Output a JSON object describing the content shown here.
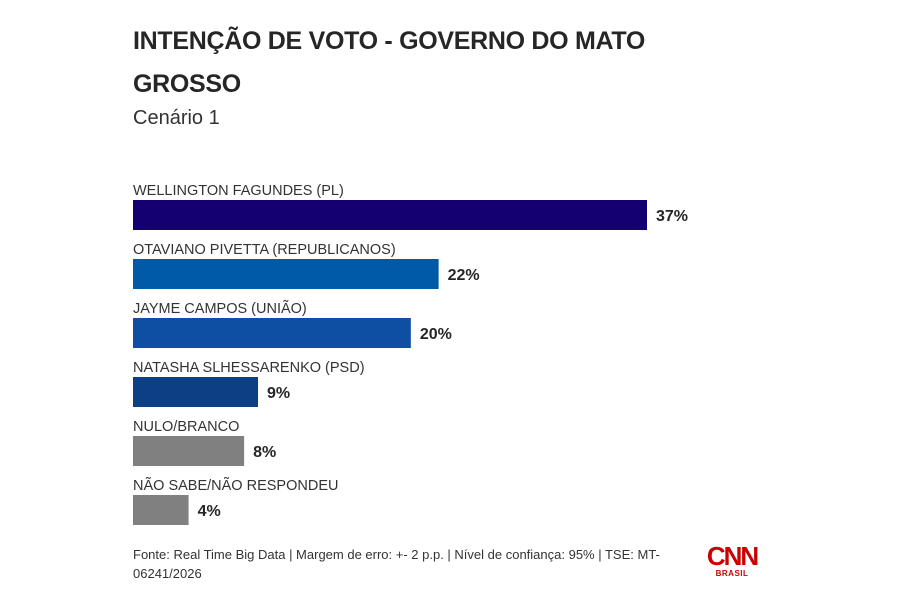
{
  "chart_data": {
    "type": "bar",
    "title": "INTENÇÃO DE VOTO - GOVERNO DO MATO GROSSO",
    "subtitle": "Cenário 1",
    "orientation": "horizontal",
    "categories": [
      "WELLINGTON FAGUNDES (PL)",
      "OTAVIANO PIVETTA (REPUBLICANOS)",
      "JAYME CAMPOS (UNIÃO)",
      "NATASHA SLHESSARENKO (PSD)",
      "NULO/BRANCO",
      "NÃO SABE/NÃO RESPONDEU"
    ],
    "values": [
      37,
      22,
      20,
      9,
      8,
      4
    ],
    "data_labels": [
      "37%",
      "22%",
      "20%",
      "9%",
      "8%",
      "4%"
    ],
    "colors": [
      "#140070",
      "#005aa8",
      "#0e4fa4",
      "#0d3f85",
      "#808080",
      "#808080"
    ],
    "grid": false
  },
  "source": "Fonte: Real Time Big Data | Margem de erro: +- 2 p.p. | Nível de confiança: 95% | TSE: MT-06241/2026",
  "logo": {
    "text": "CNN",
    "sub": "BRASIL",
    "color": "#cc0000"
  }
}
